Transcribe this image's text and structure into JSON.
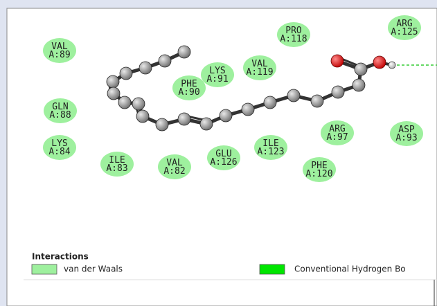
{
  "residues": [
    {
      "name": "VAL",
      "id": "A:89"
    },
    {
      "name": "PRO",
      "id": "A:118"
    },
    {
      "name": "ARG",
      "id": "A:125"
    },
    {
      "name": "LYS",
      "id": "A:91"
    },
    {
      "name": "VAL",
      "id": "A:119"
    },
    {
      "name": "PHE",
      "id": "A:90"
    },
    {
      "name": "GLN",
      "id": "A:88"
    },
    {
      "name": "LYS",
      "id": "A:84"
    },
    {
      "name": "ILE",
      "id": "A:83"
    },
    {
      "name": "VAL",
      "id": "A:82"
    },
    {
      "name": "GLU",
      "id": "A:126"
    },
    {
      "name": "ILE",
      "id": "A:123"
    },
    {
      "name": "ARG",
      "id": "A:97"
    },
    {
      "name": "ASP",
      "id": "A:93"
    },
    {
      "name": "PHE",
      "id": "A:120"
    }
  ],
  "legend": {
    "title": "Interactions",
    "items": [
      {
        "label": "van der Waals",
        "color": "#9ef09e"
      },
      {
        "label": "Conventional Hydrogen Bo",
        "color": "#00e600"
      }
    ]
  }
}
